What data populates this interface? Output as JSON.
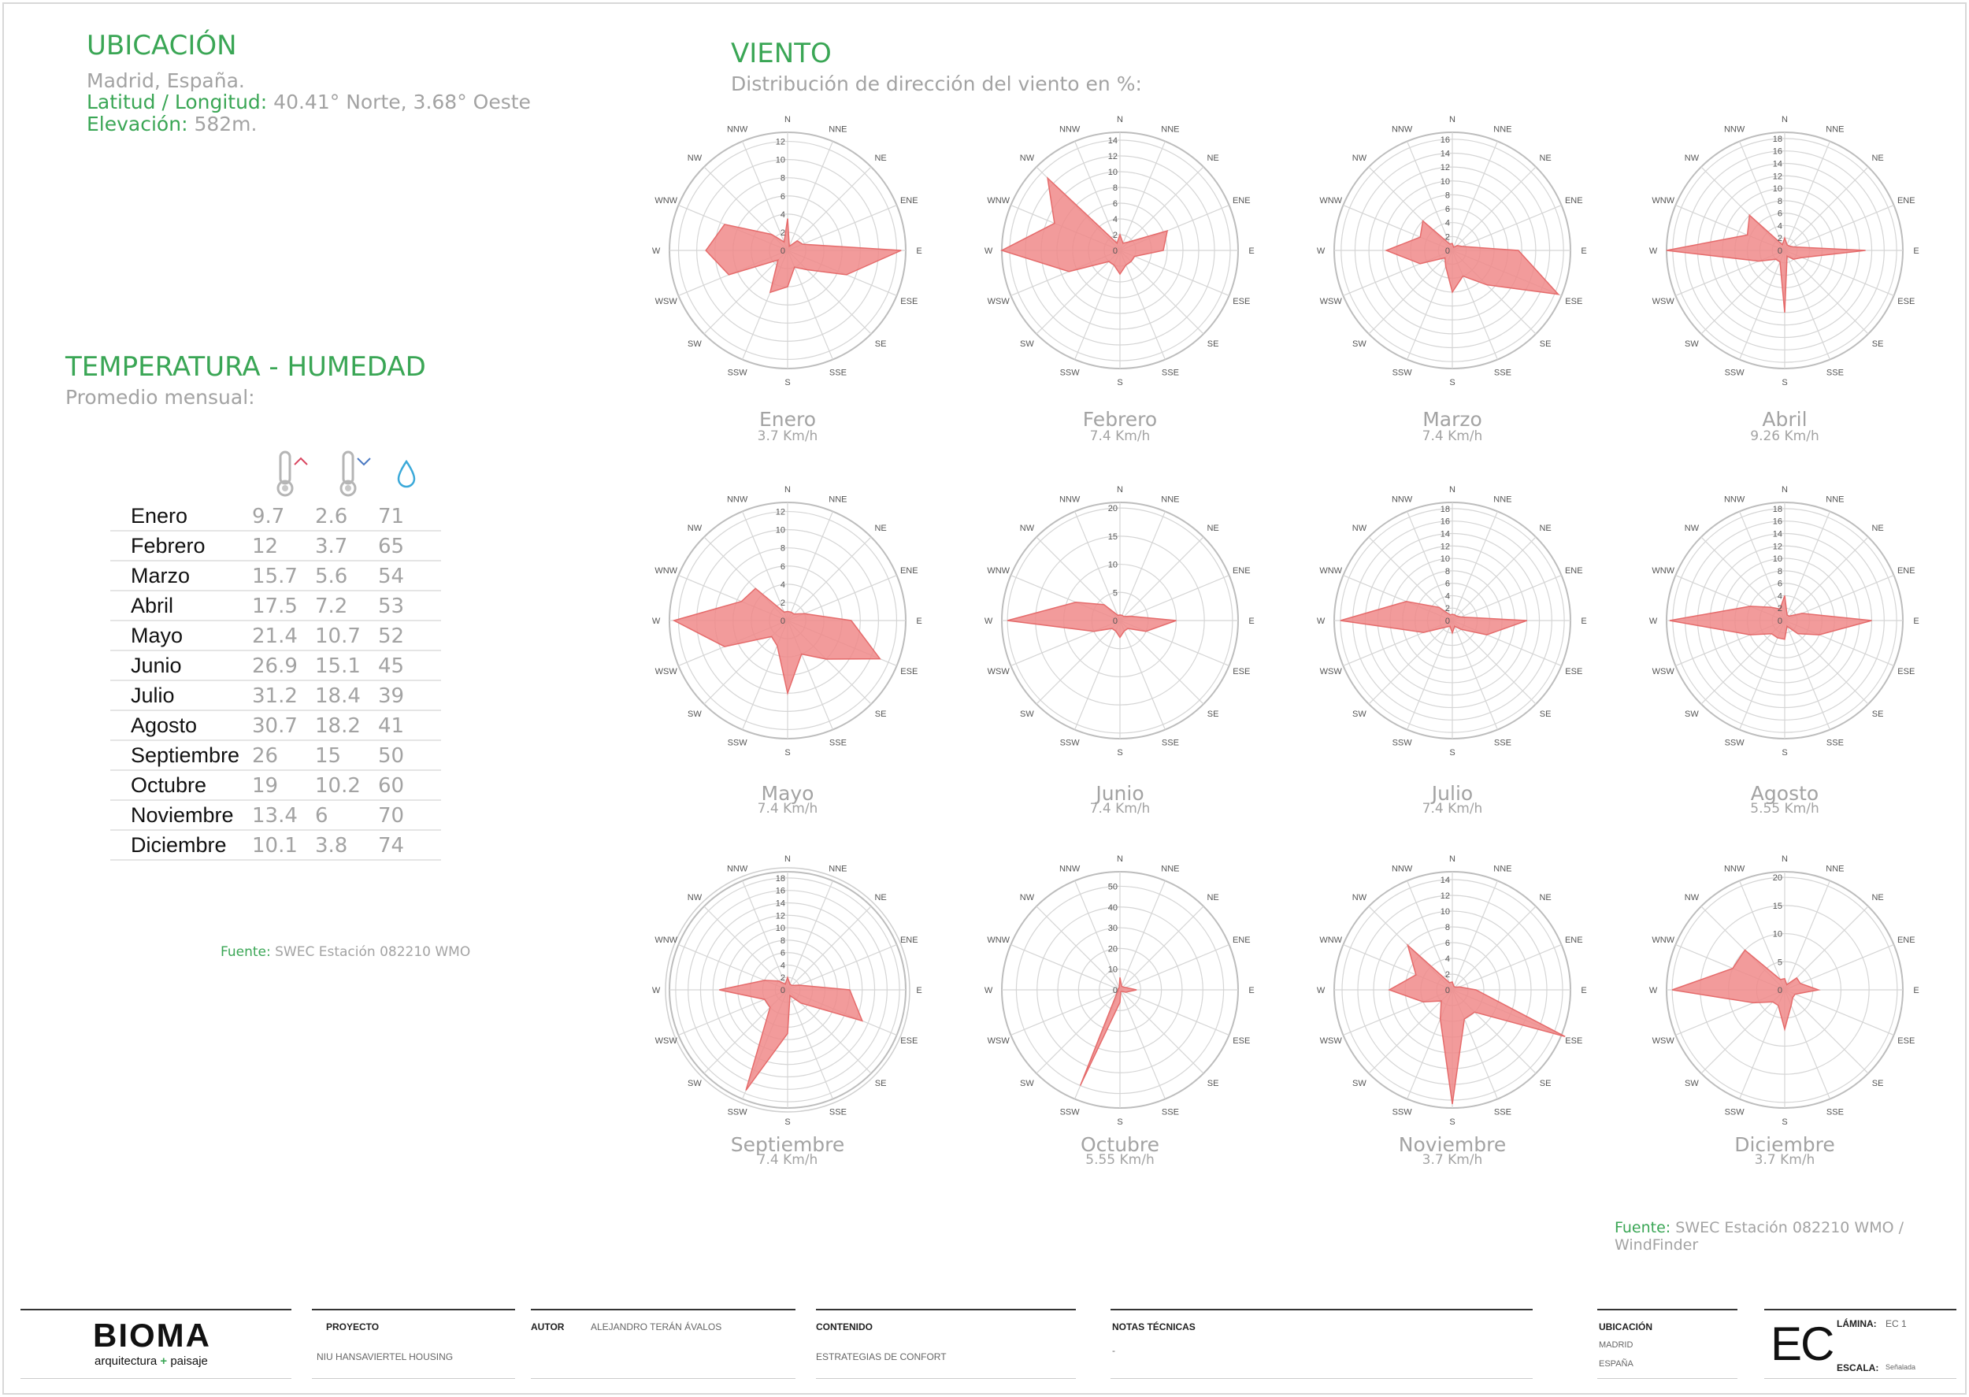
{
  "ubicacion": {
    "title": "UBICACIÓN",
    "place": "Madrid, España.",
    "latlon_label": "Latitud / Longitud:",
    "latlon_value": "40.41° Norte, 3.68° Oeste",
    "elev_label": "Elevación:",
    "elev_value": "582m."
  },
  "temperatura": {
    "title": "TEMPERATURA - HUMEDAD",
    "subtitle": "Promedio mensual:",
    "icons": [
      "thermometer-max-icon",
      "thermometer-min-icon",
      "humidity-drop-icon"
    ],
    "colors": {
      "max_arrow": "#d9455f",
      "min_arrow": "#4a78c2",
      "drop": "#3ba9d9"
    },
    "source_label": "Fuente:",
    "source_value": "SWEC Estación 082210 WMO"
  },
  "viento": {
    "title": "VIENTO",
    "subtitle": "Distribución de dirección del viento en %:",
    "source_label": "Fuente:",
    "source_value": "SWEC Estación 082210 WMO / WindFinder"
  },
  "chart_data": [
    {
      "type": "table",
      "columns": [
        "",
        "max",
        "min",
        "humidity"
      ],
      "rows": [
        [
          "Enero",
          "9.7",
          "2.6",
          "71"
        ],
        [
          "Febrero",
          "12",
          "3.7",
          "65"
        ],
        [
          "Marzo",
          "15.7",
          "5.6",
          "54"
        ],
        [
          "Abril",
          "17.5",
          "7.2",
          "53"
        ],
        [
          "Mayo",
          "21.4",
          "10.7",
          "52"
        ],
        [
          "Junio",
          "26.9",
          "15.1",
          "45"
        ],
        [
          "Julio",
          "31.2",
          "18.4",
          "39"
        ],
        [
          "Agosto",
          "30.7",
          "18.2",
          "41"
        ],
        [
          "Septiembre",
          "26",
          "15",
          "50"
        ],
        [
          "Octubre",
          "19",
          "10.2",
          "60"
        ],
        [
          "Noviembre",
          "13.4",
          "6",
          "70"
        ],
        [
          "Diciembre",
          "10.1",
          "3.8",
          "74"
        ]
      ]
    },
    {
      "type": "radar",
      "directions": [
        "N",
        "NNE",
        "NE",
        "ENE",
        "E",
        "ESE",
        "SE",
        "SSE",
        "S",
        "SSW",
        "SW",
        "WSW",
        "W",
        "WNW",
        "NW",
        "NNW"
      ],
      "fill_color": "#f08a8a",
      "stroke_color": "#e56b6b",
      "roses": [
        {
          "month": "Enero",
          "speed": "3.7 Km/h",
          "rmax": 13,
          "ticks": [
            "0",
            "2",
            "4",
            "6",
            "8",
            "10",
            "12"
          ],
          "values": [
            3.5,
            0.5,
            1.5,
            1.8,
            12.5,
            7,
            3,
            2,
            4,
            5,
            1.5,
            7,
            9,
            7.5,
            2.5,
            1
          ]
        },
        {
          "month": "Febrero",
          "speed": "7.4 Km/h",
          "rmax": 15,
          "ticks": [
            "0",
            "2",
            "4",
            "6",
            "8",
            "10",
            "12",
            "14"
          ],
          "values": [
            2,
            1,
            1.5,
            6.5,
            5.5,
            2,
            2,
            2,
            3,
            2,
            2,
            7,
            15,
            9,
            13,
            1
          ]
        },
        {
          "month": "Marzo",
          "speed": "7.4 Km/h",
          "rmax": 17,
          "ticks": [
            "0",
            "2",
            "4",
            "6",
            "8",
            "10",
            "12",
            "14",
            "16"
          ],
          "values": [
            1,
            0.5,
            1,
            1.5,
            9.5,
            16.5,
            7,
            4,
            6,
            2.5,
            1.5,
            5,
            9.5,
            5,
            6,
            1
          ]
        },
        {
          "month": "Abril",
          "speed": "9.26 Km/h",
          "rmax": 19,
          "ticks": [
            "0",
            "2",
            "4",
            "6",
            "8",
            "10",
            "12",
            "14",
            "16",
            "18"
          ],
          "values": [
            2,
            1,
            1,
            1.5,
            13,
            3,
            2,
            1,
            10,
            2,
            2,
            4.5,
            19,
            6.5,
            8,
            1
          ]
        },
        {
          "month": "Mayo",
          "speed": "7.4 Km/h",
          "rmax": 13,
          "ticks": [
            "0",
            "2",
            "4",
            "6",
            "8",
            "10",
            "12"
          ],
          "values": [
            1,
            1,
            1,
            2,
            7,
            11,
            6,
            4,
            8,
            3,
            2.5,
            7.5,
            12.5,
            5.5,
            5,
            1
          ]
        },
        {
          "month": "Junio",
          "speed": "7.4 Km/h",
          "rmax": 21,
          "ticks": [
            "0",
            "5",
            "10",
            "15",
            "20"
          ],
          "values": [
            1,
            1,
            1,
            2,
            10,
            5,
            2,
            2,
            3,
            2,
            2,
            5,
            20,
            8.5,
            4,
            1
          ]
        },
        {
          "month": "Julio",
          "speed": "7.4 Km/h",
          "rmax": 19,
          "ticks": [
            "0",
            "2",
            "4",
            "6",
            "8",
            "10",
            "12",
            "14",
            "16",
            "18"
          ],
          "values": [
            1,
            1,
            1,
            1.5,
            12,
            6,
            2,
            1,
            2,
            1,
            1.5,
            5,
            18,
            8,
            3,
            1
          ]
        },
        {
          "month": "Agosto",
          "speed": "5.55 Km/h",
          "rmax": 19,
          "ticks": [
            "0",
            "2",
            "4",
            "6",
            "8",
            "10",
            "12",
            "14",
            "16",
            "18"
          ],
          "values": [
            4,
            1,
            1,
            3,
            14,
            6,
            3,
            1,
            3,
            3,
            3,
            6,
            18.5,
            6,
            3,
            2
          ]
        },
        {
          "month": "Septiembre",
          "speed": "7.4 Km/h",
          "rmax": 19,
          "ticks": [
            "0",
            "2",
            "4",
            "6",
            "8",
            "10",
            "12",
            "14",
            "16",
            "18"
          ],
          "values": [
            2,
            1,
            1,
            2,
            10,
            13,
            3,
            1,
            7,
            17.5,
            4,
            4,
            11,
            4,
            2,
            1
          ]
        },
        {
          "month": "Octubre",
          "speed": "5.55 Km/h",
          "rmax": 57,
          "ticks": [
            "0",
            "10",
            "20",
            "30",
            "40",
            "50"
          ],
          "values": [
            6,
            2,
            2,
            3,
            8,
            3,
            1,
            1,
            6,
            50,
            2,
            1,
            1,
            1,
            1,
            1
          ]
        },
        {
          "month": "Noviembre",
          "speed": "3.7 Km/h",
          "rmax": 15,
          "ticks": [
            "0",
            "2",
            "4",
            "6",
            "8",
            "10",
            "12",
            "14"
          ],
          "values": [
            1,
            0.5,
            0.5,
            1,
            3,
            15.5,
            4,
            4,
            14.5,
            4,
            2,
            4,
            8,
            5,
            8,
            1
          ]
        },
        {
          "month": "Diciembre",
          "speed": "3.7 Km/h",
          "rmax": 21,
          "ticks": [
            "0",
            "5",
            "10",
            "15",
            "20"
          ],
          "values": [
            2,
            1,
            3,
            3,
            6,
            2,
            2,
            3,
            7,
            3,
            3,
            6,
            20,
            10,
            10,
            2
          ]
        }
      ]
    }
  ],
  "footer": {
    "logo": "BIOMA",
    "tagline_a": "arquitectura",
    "tagline_plus": "+",
    "tagline_b": "paisaje",
    "proyecto_label": "PROYECTO",
    "proyecto_value": "NIU HANSAVIERTEL HOUSING",
    "autor_label": "AUTOR",
    "autor_value": "ALEJANDRO TERÁN ÁVALOS",
    "contenido_label": "CONTENIDO",
    "contenido_value": "ESTRATEGIAS DE CONFORT",
    "notas_label": "NOTAS TÉCNICAS",
    "notas_value": "-",
    "ubicacion_label": "UBICACIÓN",
    "ubicacion_value1": "MADRID",
    "ubicacion_value2": "ESPAÑA",
    "ec_big": "EC",
    "lamina_label": "LÁMINA:",
    "lamina_value": "EC 1",
    "escala_label": "ESCALA:",
    "escala_value": "Señalada"
  }
}
